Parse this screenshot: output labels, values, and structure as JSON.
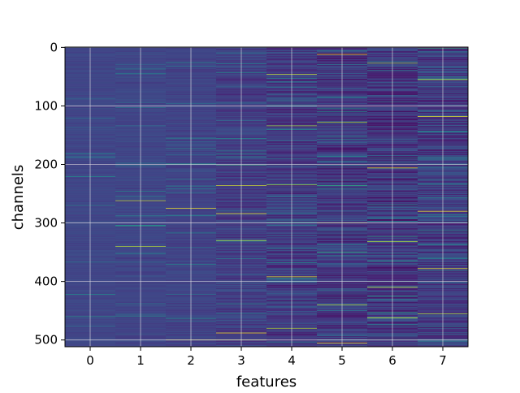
{
  "chart_data": {
    "type": "heatmap",
    "xlabel": "features",
    "ylabel": "channels",
    "x_categories": [
      "0",
      "1",
      "2",
      "3",
      "4",
      "5",
      "6",
      "7"
    ],
    "y_ticks": [
      0,
      100,
      200,
      300,
      400,
      500
    ],
    "y_range": [
      0,
      511
    ],
    "n_rows": 512,
    "grid": true,
    "colormap": "viridis",
    "bright_rows": {
      "0": [],
      "1": [
        262,
        340
      ],
      "2": [
        275,
        500
      ],
      "3": [
        236,
        284,
        330,
        488,
        500
      ],
      "4": [
        46,
        134,
        235,
        392,
        480
      ],
      "5": [
        12,
        128,
        300,
        440,
        505
      ],
      "6": [
        27,
        206,
        332,
        410,
        462
      ],
      "7": [
        55,
        118,
        280,
        378,
        455
      ]
    }
  }
}
